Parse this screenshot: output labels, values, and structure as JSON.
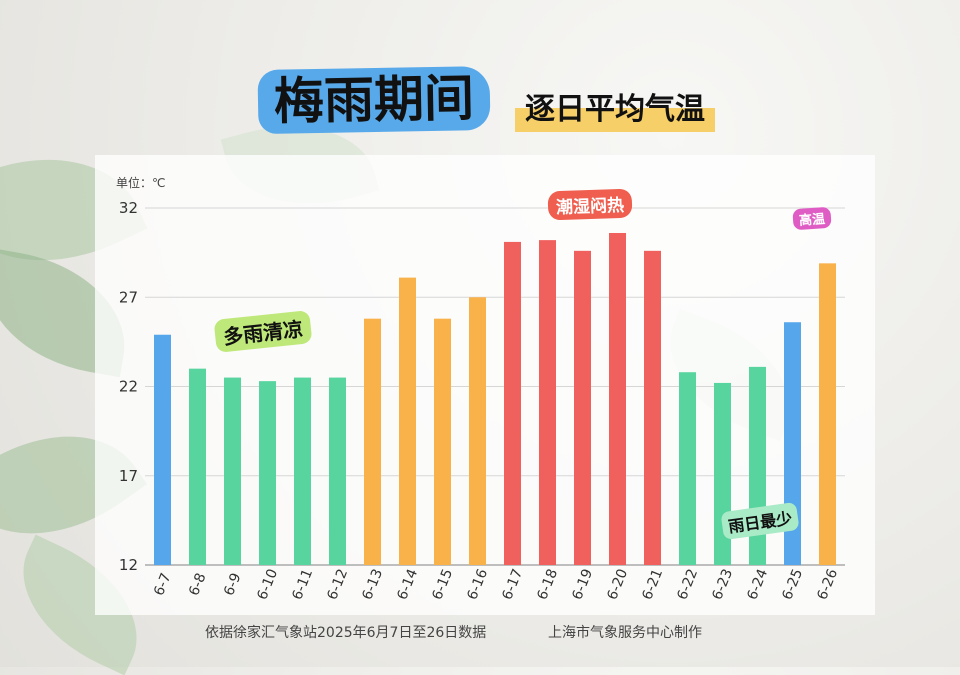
{
  "title": {
    "main": "梅雨期间",
    "sub": "逐日平均气温"
  },
  "unit_label": "单位：℃",
  "annotations": {
    "cool": "多雨清凉",
    "hot": "潮湿闷热",
    "high": "高温",
    "least_rain": "雨日最少"
  },
  "footer": {
    "source": "依据徐家汇气象站2025年6月7日至26日数据",
    "maker": "上海市气象服务中心制作"
  },
  "colors": {
    "blue": "#55a6ea",
    "green": "#58d49e",
    "orange": "#f9b24a",
    "red": "#f0605d"
  },
  "chart_data": {
    "type": "bar",
    "categories": [
      "6-7",
      "6-8",
      "6-9",
      "6-10",
      "6-11",
      "6-12",
      "6-13",
      "6-14",
      "6-15",
      "6-16",
      "6-17",
      "6-18",
      "6-19",
      "6-20",
      "6-21",
      "6-22",
      "6-23",
      "6-24",
      "6-25",
      "6-26"
    ],
    "values": [
      24.9,
      23.0,
      22.5,
      22.3,
      22.5,
      22.5,
      25.8,
      28.1,
      25.8,
      27.0,
      30.1,
      30.2,
      29.6,
      30.6,
      29.6,
      22.8,
      22.2,
      23.1,
      25.6,
      28.9
    ],
    "bar_colors": [
      "blue",
      "green",
      "green",
      "green",
      "green",
      "green",
      "orange",
      "orange",
      "orange",
      "orange",
      "red",
      "red",
      "red",
      "red",
      "red",
      "green",
      "green",
      "green",
      "blue",
      "orange"
    ],
    "ylim": [
      12,
      32
    ],
    "yticks": [
      12,
      17,
      22,
      27,
      32
    ],
    "grid": true
  }
}
